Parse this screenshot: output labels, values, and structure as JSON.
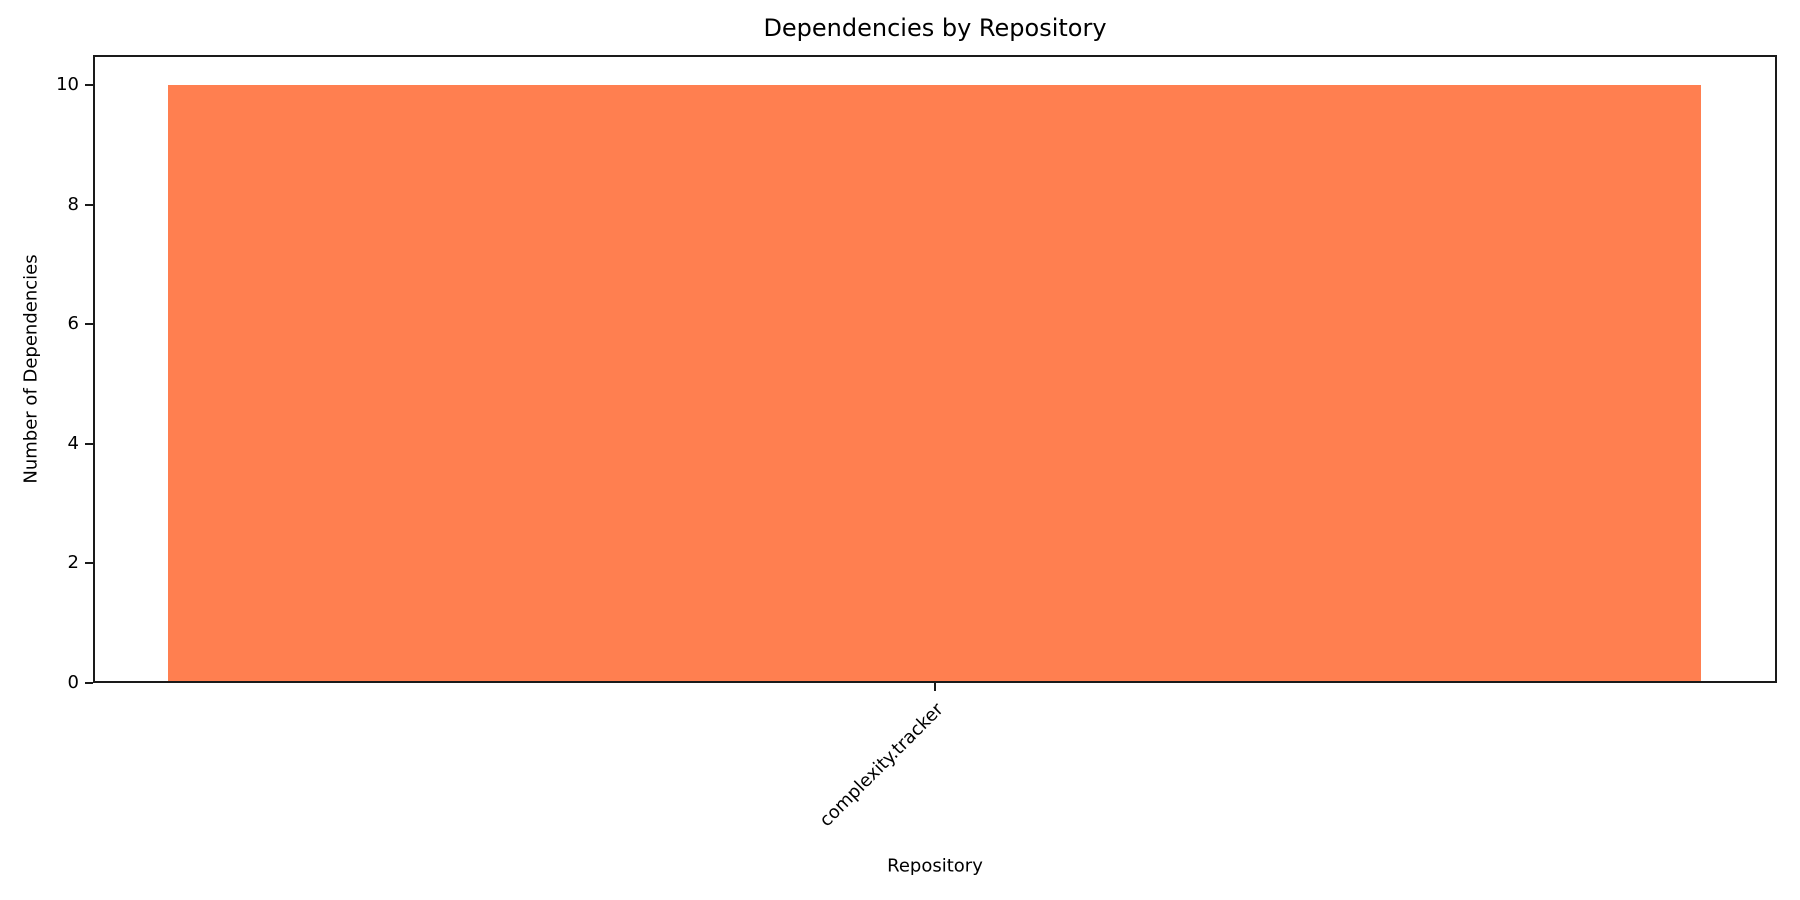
{
  "chart_data": {
    "type": "bar",
    "title": "Dependencies by Repository",
    "xlabel": "Repository",
    "ylabel": "Number of Dependencies",
    "categories": [
      "complexity.tracker"
    ],
    "values": [
      10
    ],
    "yticks": [
      0,
      2,
      4,
      6,
      8,
      10
    ],
    "ylim": [
      0,
      10.5
    ],
    "grid": false,
    "legend": false,
    "x_tick_label_rotation_deg": 45,
    "colors": {
      "bar": "#FF7F50",
      "axis": "#1a1a1a",
      "text": "#000000",
      "background": "#ffffff"
    }
  }
}
